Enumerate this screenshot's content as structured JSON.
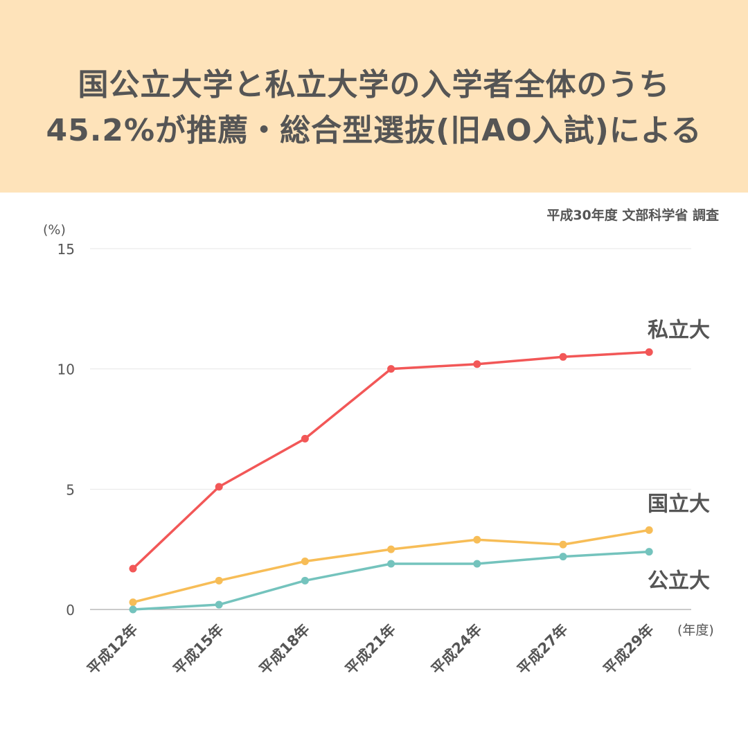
{
  "title": {
    "line1": "国公立大学と私立大学の入学者全体のうち",
    "line2": "45.2%が推薦・総合型選抜(旧AO入試)による"
  },
  "source": "平成30年度 文部科学省 調査",
  "colors": {
    "banner": "#fee3ba",
    "private": "#f25757",
    "national": "#f7bd57",
    "public": "#74c3bd",
    "grid": "#e6e6e6",
    "axis": "#aaaaaa",
    "text": "#555555"
  },
  "chart_data": {
    "type": "line",
    "ylabel": "(%)",
    "xlabel": "(年度)",
    "ylim": [
      0,
      15
    ],
    "yticks": [
      0,
      5,
      10,
      15
    ],
    "grid": "horizontal",
    "categories": [
      "平成12年",
      "平成15年",
      "平成18年",
      "平成21年",
      "平成24年",
      "平成27年",
      "平成29年"
    ],
    "series": [
      {
        "name": "私立大",
        "color": "#f25757",
        "values": [
          1.7,
          5.1,
          7.1,
          10.0,
          10.2,
          10.5,
          10.7
        ]
      },
      {
        "name": "国立大",
        "color": "#f7bd57",
        "values": [
          0.3,
          1.2,
          2.0,
          2.5,
          2.9,
          2.7,
          3.3
        ]
      },
      {
        "name": "公立大",
        "color": "#74c3bd",
        "values": [
          0.0,
          0.2,
          1.2,
          1.9,
          1.9,
          2.2,
          2.4
        ]
      }
    ]
  }
}
